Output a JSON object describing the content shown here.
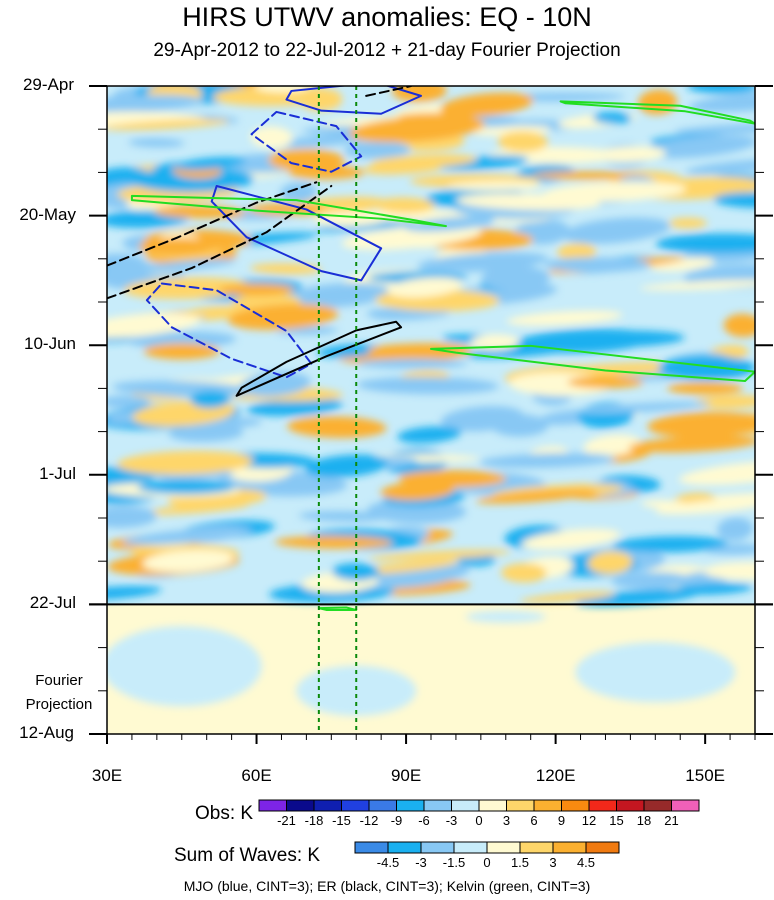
{
  "title": "HIRS UTWV anomalies: EQ - 10N",
  "subtitle": "29-Apr-2012 to 22-Jul-2012 + 21-day Fourier Projection",
  "footer": "MJO (blue, CINT=3); ER (black, CINT=3); Kelvin (green, CINT=3)",
  "projection_label": [
    "Fourier",
    "Projection"
  ],
  "colors": {
    "mjo": "#1a2ed6",
    "er": "#000000",
    "kelvin": "#22dd22",
    "marker": "#0a8a0a"
  },
  "chart_data": {
    "type": "heatmap",
    "title": "HIRS UTWV anomalies: EQ - 10N",
    "subtitle": "29-Apr-2012 to 22-Jul-2012 + 21-day Fourier Projection",
    "x": {
      "range": [
        30,
        160
      ],
      "ticks": [
        30,
        60,
        90,
        120,
        150
      ],
      "tick_labels": [
        "30E",
        "60E",
        "90E",
        "120E",
        "150E"
      ]
    },
    "y": {
      "range": [
        "29-Apr",
        "12-Aug"
      ],
      "tick_labels": [
        "29-Apr",
        "20-May",
        "10-Jun",
        "1-Jul",
        "22-Jul",
        "12-Aug"
      ],
      "days": [
        0,
        21,
        42,
        63,
        84,
        105
      ]
    },
    "observation_end": "22-Jul",
    "marker_longitudes": [
      72.5,
      80
    ],
    "obs_colorbar": {
      "title": "Obs: K",
      "levels": [
        "-21",
        "-18",
        "-15",
        "-12",
        "-9",
        "-6",
        "-3",
        "0",
        "3",
        "6",
        "9",
        "12",
        "15",
        "18",
        "21"
      ],
      "colors": [
        "#7d24e6",
        "#0a0a8c",
        "#0f1fb0",
        "#2040e0",
        "#3a7ae6",
        "#1ab0f0",
        "#88c8f4",
        "#c8ecfa",
        "#fffad2",
        "#fed66a",
        "#fbb030",
        "#f88a10",
        "#f2281a",
        "#c41620",
        "#962a2a",
        "#f060b8"
      ]
    },
    "waves_colorbar": {
      "title": "Sum of Waves: K",
      "levels": [
        "-4.5",
        "-3",
        "-1.5",
        "0",
        "1.5",
        "3",
        "4.5"
      ],
      "colors": [
        "#3a8ae6",
        "#1ab0f0",
        "#88c8f4",
        "#c8ecfa",
        "#fffad2",
        "#fed66a",
        "#fbb030",
        "#f07a10"
      ]
    },
    "contours": [
      {
        "wave": "MJO",
        "sign": "positive",
        "points": [
          [
            67,
            0.8
          ],
          [
            84,
            -0.6
          ],
          [
            93,
            1.6
          ],
          [
            85,
            4.5
          ],
          [
            73,
            4
          ],
          [
            66,
            2.2
          ]
        ]
      },
      {
        "wave": "MJO",
        "sign": "positive",
        "points": [
          [
            52,
            16.2
          ],
          [
            70,
            20
          ],
          [
            85,
            26.3
          ],
          [
            81,
            31.5
          ],
          [
            73,
            30
          ],
          [
            58,
            24.5
          ],
          [
            51,
            18.7
          ]
        ]
      },
      {
        "wave": "MJO",
        "sign": "negative",
        "points": [
          [
            64,
            4.2
          ],
          [
            76,
            6.5
          ],
          [
            81,
            11.4
          ],
          [
            75,
            13.9
          ],
          [
            67,
            12.5
          ],
          [
            59,
            7.8
          ]
        ]
      },
      {
        "wave": "MJO",
        "sign": "negative",
        "points": [
          [
            41,
            32
          ],
          [
            52,
            33.1
          ],
          [
            66,
            39.7
          ],
          [
            71,
            45
          ],
          [
            66,
            47.2
          ],
          [
            55,
            44.2
          ],
          [
            43,
            39.1
          ],
          [
            38,
            34.7
          ]
        ]
      },
      {
        "wave": "ER",
        "sign": "positive",
        "points": [
          [
            56,
            50.2
          ],
          [
            74,
            43.8
          ],
          [
            89,
            39.1
          ],
          [
            88,
            38.2
          ],
          [
            80,
            39.6
          ],
          [
            66,
            44.7
          ],
          [
            57,
            48.9
          ]
        ]
      },
      {
        "wave": "ER",
        "sign": "negative",
        "points": [
          [
            30,
            29.1
          ],
          [
            44,
            24.6
          ],
          [
            60,
            18.9
          ],
          [
            72,
            15.6
          ]
        ]
      },
      {
        "wave": "ER",
        "sign": "negative",
        "points": [
          [
            30,
            34.4
          ],
          [
            47,
            29.5
          ],
          [
            62,
            23.7
          ],
          [
            75,
            16.2
          ]
        ]
      },
      {
        "wave": "ER",
        "sign": "negative",
        "points": [
          [
            82,
            1.6
          ],
          [
            91,
            0
          ]
        ]
      },
      {
        "wave": "Kelvin",
        "points": [
          [
            35,
            17.8
          ],
          [
            68,
            18.5
          ],
          [
            92,
            21.8
          ],
          [
            98,
            22.7
          ],
          [
            85,
            21.5
          ],
          [
            60,
            20.2
          ],
          [
            35,
            18.5
          ]
        ]
      },
      {
        "wave": "Kelvin",
        "points": [
          [
            95,
            42.6
          ],
          [
            115,
            42.1
          ],
          [
            160,
            46.3
          ],
          [
            158,
            47.8
          ],
          [
            130,
            46.1
          ],
          [
            100,
            43.2
          ]
        ]
      },
      {
        "wave": "Kelvin",
        "points": [
          [
            121,
            2.5
          ],
          [
            145,
            3.2
          ],
          [
            159,
            5.6
          ],
          [
            160,
            6.1
          ],
          [
            146,
            4.1
          ],
          [
            122,
            2.8
          ]
        ]
      },
      {
        "wave": "Kelvin",
        "points": [
          [
            72.5,
            84.6
          ],
          [
            78,
            84.5
          ],
          [
            80,
            84.9
          ],
          [
            74,
            84.9
          ]
        ]
      }
    ]
  }
}
